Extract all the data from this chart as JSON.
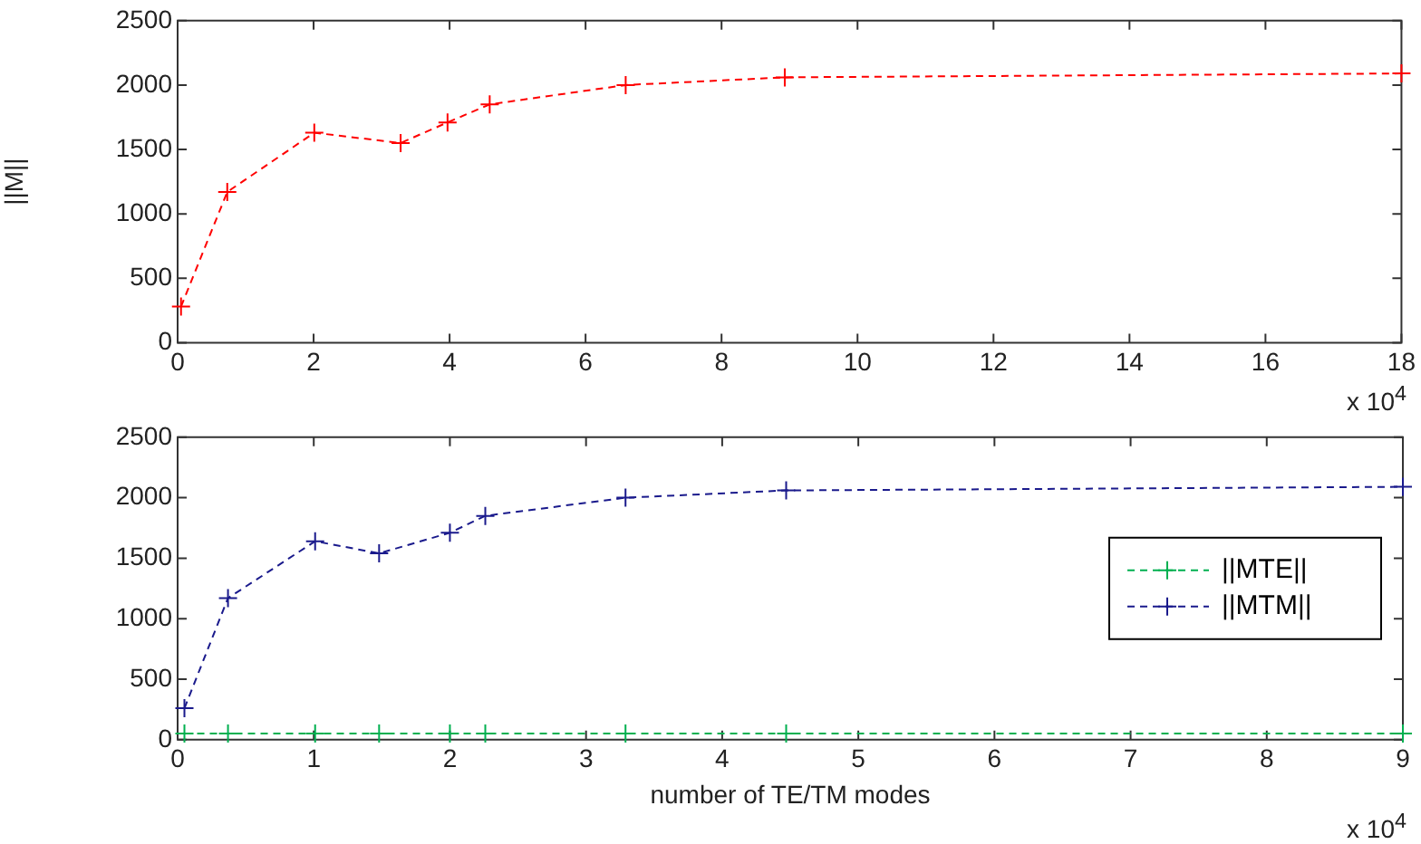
{
  "chart_data": [
    {
      "type": "line",
      "ylabel": "||M||",
      "annotations": [
        "x 10$^{4}$"
      ],
      "xlim": [
        0,
        18
      ],
      "xticks": [
        0,
        2,
        4,
        6,
        8,
        10,
        12,
        14,
        16,
        18
      ],
      "ylim": [
        0,
        2500
      ],
      "yticks": [
        0,
        500,
        1000,
        1500,
        2000,
        2500
      ],
      "grid": false,
      "legend": false,
      "marker": "cross",
      "line_style": "dashed",
      "series": [
        {
          "color": "#ff0000",
          "x": [
            0.05,
            0.73,
            2.01,
            3.28,
            3.97,
            4.59,
            6.59,
            8.93,
            18
          ],
          "values": [
            280,
            1170,
            1630,
            1550,
            1710,
            1850,
            2000,
            2060,
            2090
          ]
        }
      ]
    },
    {
      "type": "line",
      "xlabel": "number of TE/TM modes",
      "annotations": [
        "x 10$^{4}$"
      ],
      "xlim": [
        0,
        9
      ],
      "xticks": [
        0,
        1,
        2,
        3,
        4,
        5,
        6,
        7,
        8,
        9
      ],
      "ylim": [
        0,
        2500
      ],
      "yticks": [
        0,
        500,
        1000,
        1500,
        2000,
        2500
      ],
      "grid": false,
      "legend": "right",
      "marker": "cross",
      "line_style": "dashed",
      "series": [
        {
          "name": "||MTE||",
          "color": "#00b050",
          "x": [
            0.05,
            0.37,
            1.01,
            1.48,
            2.0,
            2.26,
            3.29,
            4.47,
            9
          ],
          "values": [
            50,
            50,
            50,
            50,
            50,
            50,
            50,
            50,
            50
          ]
        },
        {
          "name": "||MTM||",
          "color": "#1a1a8c",
          "x": [
            0.05,
            0.37,
            1.01,
            1.48,
            2.0,
            2.26,
            3.29,
            4.47,
            9
          ],
          "values": [
            260,
            1170,
            1640,
            1540,
            1710,
            1850,
            2000,
            2060,
            2090
          ]
        }
      ]
    }
  ]
}
